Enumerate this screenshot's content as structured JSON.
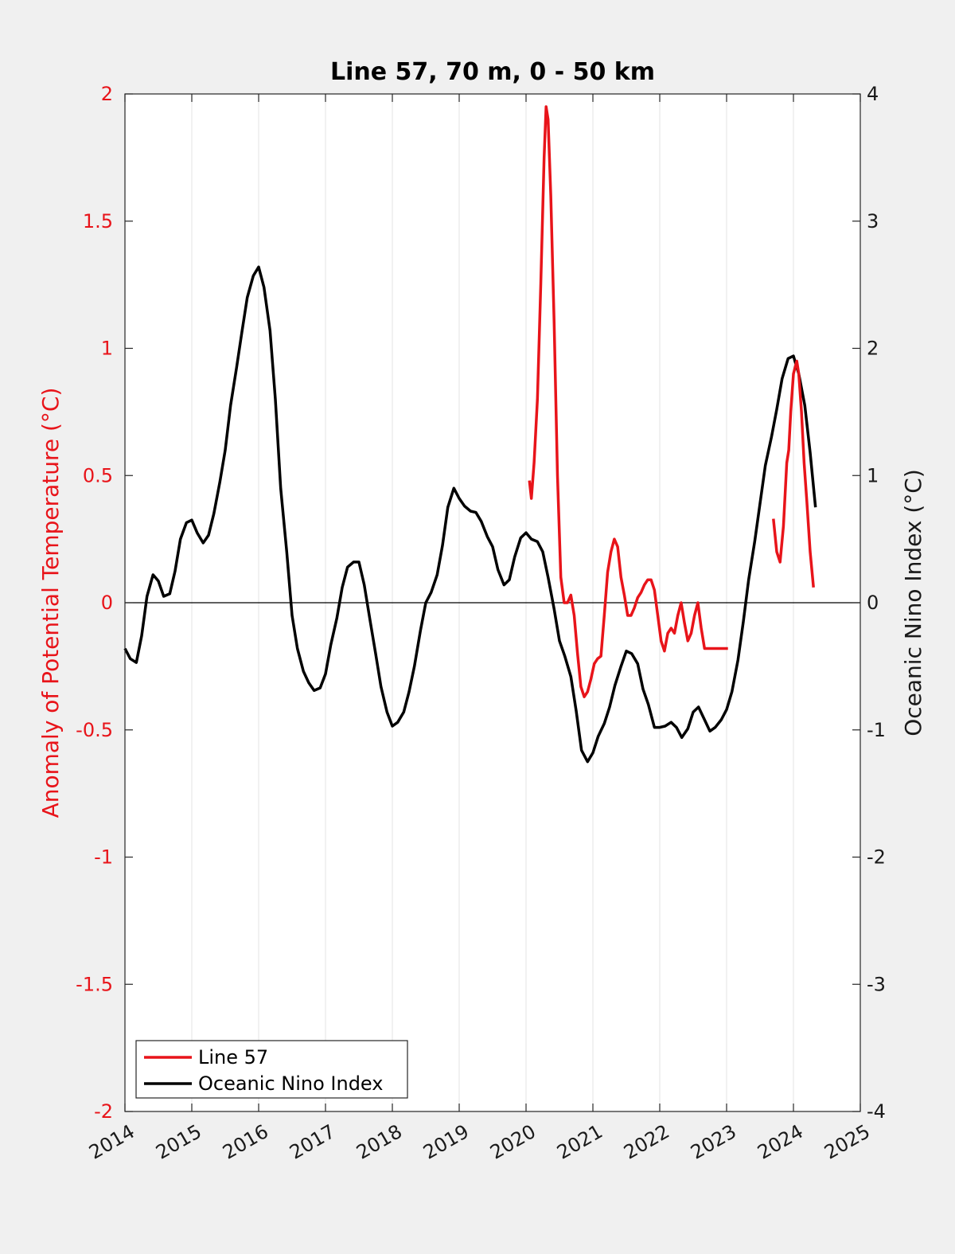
{
  "chart_data": {
    "type": "line",
    "title": "Line 57, 70 m, 0 - 50 km",
    "ylabel_left": "Anomaly of Potential Temperature (°C)",
    "ylabel_right": "Oceanic Nino Index (°C)",
    "xlim": [
      2014,
      2025
    ],
    "ylim_left": [
      -2,
      2
    ],
    "ylim_right": [
      -4,
      4
    ],
    "x_ticks": [
      "2014",
      "2015",
      "2016",
      "2017",
      "2018",
      "2019",
      "2020",
      "2021",
      "2022",
      "2023",
      "2024",
      "2025"
    ],
    "y_ticks_left": [
      "2",
      "1.5",
      "1",
      "0.5",
      "0",
      "-0.5",
      "-1",
      "-1.5",
      "-2"
    ],
    "y_ticks_right": [
      "4",
      "3",
      "2",
      "1",
      "0",
      "-1",
      "-2",
      "-3",
      "-4"
    ],
    "grid": "vertical",
    "legend_position": "bottom-left",
    "colors": {
      "line57": "#e8141a",
      "oni": "#000000",
      "left_axis": "#e8141a"
    },
    "series": [
      {
        "name": "Line 57",
        "axis": "left",
        "segments": [
          {
            "x": [
              2020.05,
              2020.08,
              2020.12,
              2020.17,
              2020.22,
              2020.27,
              2020.3,
              2020.33,
              2020.37,
              2020.42,
              2020.47,
              2020.52,
              2020.57,
              2020.62,
              2020.67,
              2020.72,
              2020.77,
              2020.82,
              2020.87,
              2020.92,
              2020.97,
              2021.02,
              2021.07,
              2021.12,
              2021.17,
              2021.22,
              2021.27,
              2021.32,
              2021.37,
              2021.42,
              2021.47,
              2021.52,
              2021.57,
              2021.62,
              2021.67,
              2021.72,
              2021.77,
              2021.82,
              2021.87,
              2021.92,
              2021.97,
              2022.02,
              2022.07,
              2022.12,
              2022.17,
              2022.22,
              2022.27,
              2022.32,
              2022.37,
              2022.42,
              2022.47,
              2022.52,
              2022.57,
              2022.62,
              2022.67,
              2022.72,
              2022.77,
              2022.82,
              2022.87,
              2022.92,
              2022.97,
              2023.02
            ],
            "y": [
              0.48,
              0.41,
              0.55,
              0.8,
              1.25,
              1.75,
              1.95,
              1.9,
              1.6,
              1.1,
              0.5,
              0.1,
              0.0,
              0.0,
              0.03,
              -0.05,
              -0.2,
              -0.33,
              -0.37,
              -0.35,
              -0.3,
              -0.24,
              -0.22,
              -0.21,
              -0.05,
              0.12,
              0.2,
              0.25,
              0.22,
              0.1,
              0.03,
              -0.05,
              -0.05,
              -0.02,
              0.02,
              0.04,
              0.07,
              0.09,
              0.09,
              0.05,
              -0.05,
              -0.15,
              -0.19,
              -0.12,
              -0.1,
              -0.12,
              -0.05,
              0.0,
              -0.08,
              -0.15,
              -0.12,
              -0.05,
              0.0,
              -0.1,
              -0.18,
              -0.18,
              -0.18,
              -0.18,
              -0.18,
              -0.18,
              -0.18,
              -0.18
            ]
          },
          {
            "x": [
              2023.7,
              2023.75,
              2023.8,
              2023.85,
              2023.9,
              2023.93,
              2023.96,
              2024.0,
              2024.05,
              2024.08,
              2024.12,
              2024.16,
              2024.2,
              2024.25,
              2024.3
            ],
            "y": [
              0.33,
              0.2,
              0.16,
              0.3,
              0.55,
              0.6,
              0.75,
              0.9,
              0.95,
              0.9,
              0.75,
              0.55,
              0.4,
              0.2,
              0.06
            ]
          }
        ]
      },
      {
        "name": "Oceanic Nino Index",
        "axis": "right",
        "x": [
          2014.0,
          2014.08,
          2014.17,
          2014.25,
          2014.33,
          2014.42,
          2014.5,
          2014.58,
          2014.67,
          2014.75,
          2014.83,
          2014.92,
          2015.0,
          2015.08,
          2015.17,
          2015.25,
          2015.33,
          2015.42,
          2015.5,
          2015.58,
          2015.67,
          2015.75,
          2015.83,
          2015.92,
          2016.0,
          2016.08,
          2016.17,
          2016.25,
          2016.33,
          2016.42,
          2016.5,
          2016.58,
          2016.67,
          2016.75,
          2016.83,
          2016.92,
          2017.0,
          2017.08,
          2017.17,
          2017.25,
          2017.33,
          2017.42,
          2017.5,
          2017.58,
          2017.67,
          2017.75,
          2017.83,
          2017.92,
          2018.0,
          2018.08,
          2018.17,
          2018.25,
          2018.33,
          2018.42,
          2018.5,
          2018.58,
          2018.67,
          2018.75,
          2018.83,
          2018.92,
          2019.0,
          2019.08,
          2019.17,
          2019.25,
          2019.33,
          2019.42,
          2019.5,
          2019.58,
          2019.67,
          2019.75,
          2019.83,
          2019.92,
          2020.0,
          2020.08,
          2020.17,
          2020.25,
          2020.33,
          2020.42,
          2020.5,
          2020.58,
          2020.67,
          2020.75,
          2020.83,
          2020.92,
          2021.0,
          2021.08,
          2021.17,
          2021.25,
          2021.33,
          2021.42,
          2021.5,
          2021.58,
          2021.67,
          2021.75,
          2021.83,
          2021.92,
          2022.0,
          2022.08,
          2022.17,
          2022.25,
          2022.33,
          2022.42,
          2022.5,
          2022.58,
          2022.67,
          2022.75,
          2022.83,
          2022.92,
          2023.0,
          2023.08,
          2023.17,
          2023.25,
          2023.33,
          2023.42,
          2023.5,
          2023.58,
          2023.67,
          2023.75,
          2023.83,
          2023.92,
          2024.0,
          2024.08,
          2024.17,
          2024.25,
          2024.33
        ],
        "y": [
          -0.36,
          -0.44,
          -0.47,
          -0.26,
          0.05,
          0.22,
          0.17,
          0.05,
          0.07,
          0.25,
          0.5,
          0.63,
          0.65,
          0.55,
          0.47,
          0.53,
          0.7,
          0.95,
          1.2,
          1.55,
          1.85,
          2.13,
          2.4,
          2.57,
          2.64,
          2.48,
          2.14,
          1.6,
          0.9,
          0.4,
          -0.1,
          -0.36,
          -0.54,
          -0.63,
          -0.69,
          -0.67,
          -0.56,
          -0.33,
          -0.12,
          0.12,
          0.28,
          0.32,
          0.32,
          0.14,
          -0.15,
          -0.4,
          -0.66,
          -0.86,
          -0.97,
          -0.94,
          -0.86,
          -0.7,
          -0.5,
          -0.22,
          0.0,
          0.08,
          0.22,
          0.45,
          0.75,
          0.9,
          0.82,
          0.76,
          0.72,
          0.71,
          0.64,
          0.52,
          0.44,
          0.26,
          0.14,
          0.18,
          0.36,
          0.51,
          0.55,
          0.5,
          0.48,
          0.4,
          0.2,
          -0.05,
          -0.3,
          -0.42,
          -0.58,
          -0.85,
          -1.16,
          -1.25,
          -1.18,
          -1.05,
          -0.95,
          -0.82,
          -0.65,
          -0.5,
          -0.38,
          -0.4,
          -0.48,
          -0.68,
          -0.8,
          -0.98,
          -0.98,
          -0.97,
          -0.94,
          -0.98,
          -1.06,
          -0.99,
          -0.86,
          -0.82,
          -0.92,
          -1.01,
          -0.98,
          -0.92,
          -0.84,
          -0.7,
          -0.45,
          -0.15,
          0.18,
          0.48,
          0.78,
          1.08,
          1.3,
          1.52,
          1.76,
          1.92,
          1.94,
          1.8,
          1.55,
          1.18,
          0.75
        ]
      }
    ]
  }
}
